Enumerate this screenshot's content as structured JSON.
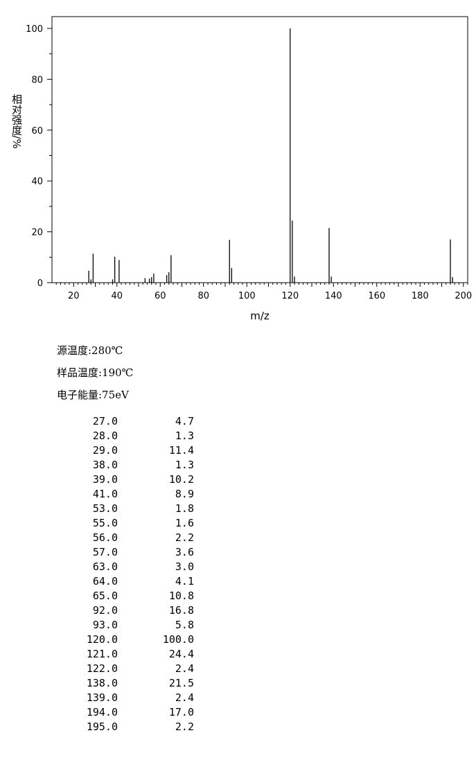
{
  "chart_data": {
    "type": "bar",
    "xlabel": "m/z",
    "ylabel": "相对强度/%",
    "xlim": [
      10,
      202
    ],
    "ylim": [
      0,
      105
    ],
    "x_ticks": [
      20,
      40,
      60,
      80,
      100,
      120,
      140,
      160,
      180,
      200
    ],
    "y_ticks": [
      0,
      20,
      40,
      60,
      80,
      100
    ],
    "grid": false,
    "peaks": [
      {
        "mz": 27.0,
        "intensity": 4.7
      },
      {
        "mz": 28.0,
        "intensity": 1.3
      },
      {
        "mz": 29.0,
        "intensity": 11.4
      },
      {
        "mz": 38.0,
        "intensity": 1.3
      },
      {
        "mz": 39.0,
        "intensity": 10.2
      },
      {
        "mz": 41.0,
        "intensity": 8.9
      },
      {
        "mz": 53.0,
        "intensity": 1.8
      },
      {
        "mz": 55.0,
        "intensity": 1.6
      },
      {
        "mz": 56.0,
        "intensity": 2.2
      },
      {
        "mz": 57.0,
        "intensity": 3.6
      },
      {
        "mz": 63.0,
        "intensity": 3.0
      },
      {
        "mz": 64.0,
        "intensity": 4.1
      },
      {
        "mz": 65.0,
        "intensity": 10.8
      },
      {
        "mz": 92.0,
        "intensity": 16.8
      },
      {
        "mz": 93.0,
        "intensity": 5.8
      },
      {
        "mz": 120.0,
        "intensity": 100.0
      },
      {
        "mz": 121.0,
        "intensity": 24.4
      },
      {
        "mz": 122.0,
        "intensity": 2.4
      },
      {
        "mz": 138.0,
        "intensity": 21.5
      },
      {
        "mz": 139.0,
        "intensity": 2.4
      },
      {
        "mz": 194.0,
        "intensity": 17.0
      },
      {
        "mz": 195.0,
        "intensity": 2.2
      }
    ]
  },
  "conditions": {
    "source_temp": "源温度:280℃",
    "sample_temp": "样品温度:190℃",
    "electron_energy": "电子能量:75eV"
  },
  "peak_table": [
    {
      "mz": "27.0",
      "abundance": "4.7"
    },
    {
      "mz": "28.0",
      "abundance": "1.3"
    },
    {
      "mz": "29.0",
      "abundance": "11.4"
    },
    {
      "mz": "38.0",
      "abundance": "1.3"
    },
    {
      "mz": "39.0",
      "abundance": "10.2"
    },
    {
      "mz": "41.0",
      "abundance": "8.9"
    },
    {
      "mz": "53.0",
      "abundance": "1.8"
    },
    {
      "mz": "55.0",
      "abundance": "1.6"
    },
    {
      "mz": "56.0",
      "abundance": "2.2"
    },
    {
      "mz": "57.0",
      "abundance": "3.6"
    },
    {
      "mz": "63.0",
      "abundance": "3.0"
    },
    {
      "mz": "64.0",
      "abundance": "4.1"
    },
    {
      "mz": "65.0",
      "abundance": "10.8"
    },
    {
      "mz": "92.0",
      "abundance": "16.8"
    },
    {
      "mz": "93.0",
      "abundance": "5.8"
    },
    {
      "mz": "120.0",
      "abundance": "100.0"
    },
    {
      "mz": "121.0",
      "abundance": "24.4"
    },
    {
      "mz": "122.0",
      "abundance": "2.4"
    },
    {
      "mz": "138.0",
      "abundance": "21.5"
    },
    {
      "mz": "139.0",
      "abundance": "2.4"
    },
    {
      "mz": "194.0",
      "abundance": "17.0"
    },
    {
      "mz": "195.0",
      "abundance": "2.2"
    }
  ]
}
